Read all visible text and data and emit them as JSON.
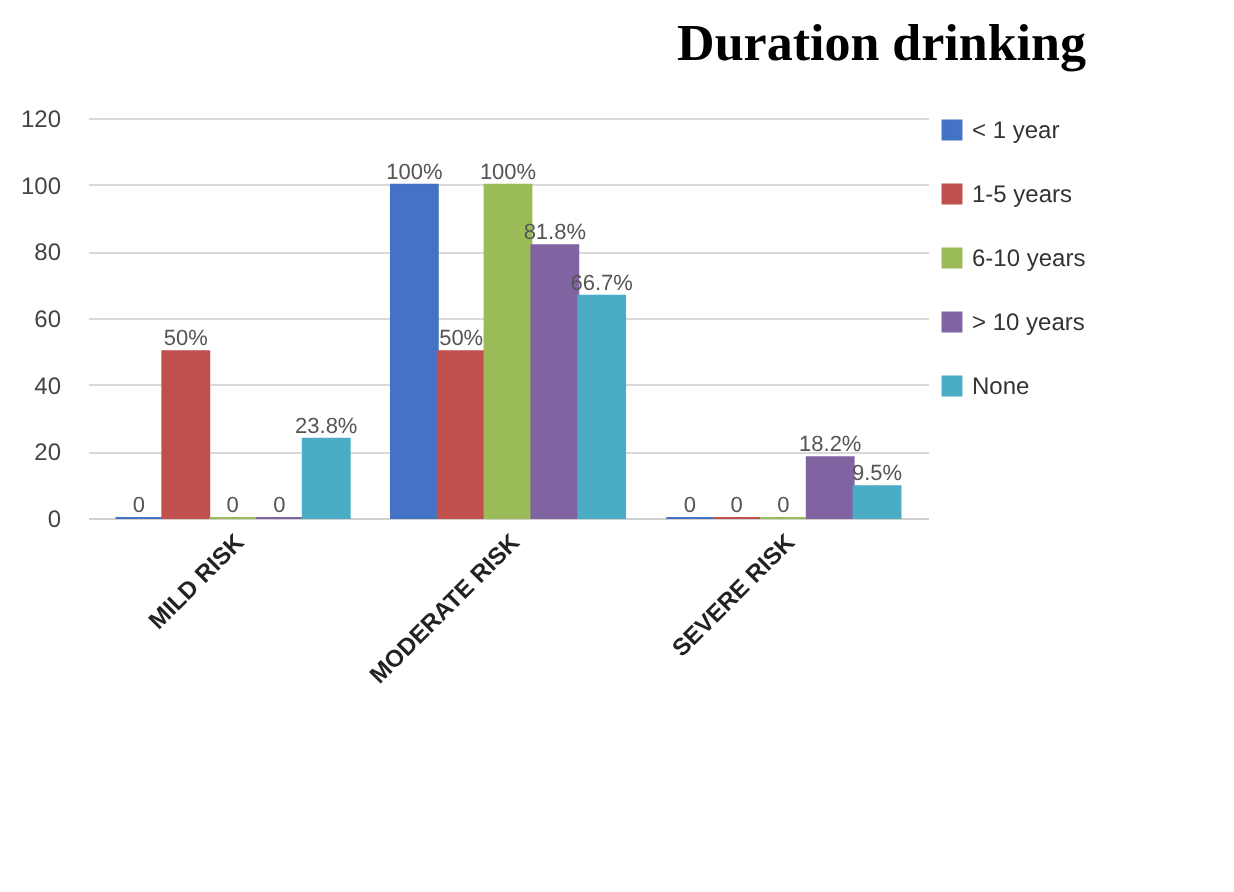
{
  "chart_data": {
    "type": "bar",
    "title": "Duration drinking",
    "categories": [
      "MILD RISK",
      "MODERATE RISK",
      "SEVERE RISK"
    ],
    "series": [
      {
        "name": "< 1 year",
        "color": "#4472c4",
        "values": [
          0,
          100,
          0
        ],
        "value_labels": [
          "0",
          "100%",
          "0"
        ]
      },
      {
        "name": "1-5 years",
        "color": "#c0504d",
        "values": [
          50,
          50,
          0
        ],
        "value_labels": [
          "50%",
          "50%",
          "0"
        ]
      },
      {
        "name": "6-10 years",
        "color": "#9bbb59",
        "values": [
          0,
          100,
          0
        ],
        "value_labels": [
          "0",
          "100%",
          "0"
        ]
      },
      {
        "name": "> 10 years",
        "color": "#8064a2",
        "values": [
          0,
          81.8,
          18.2
        ],
        "value_labels": [
          "0",
          "81.8%",
          "18.2%"
        ]
      },
      {
        "name": "None",
        "color": "#4bacc6",
        "values": [
          23.8,
          66.7,
          9.5
        ],
        "value_labels": [
          "23.8%",
          "66.7%",
          "9.5%"
        ]
      }
    ],
    "ylim": [
      0,
      120
    ],
    "yticks": [
      0,
      20,
      40,
      60,
      80,
      100,
      120
    ],
    "grid": "y",
    "legend": "right"
  }
}
